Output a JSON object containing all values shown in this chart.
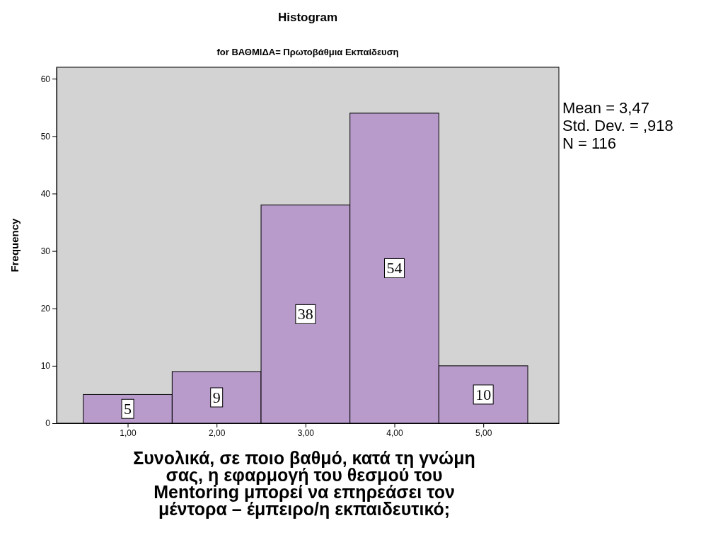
{
  "chart_data": {
    "type": "histogram",
    "title": "Histogram",
    "subtitle": "for ΒΑΘΜΙΔΑ= Πρωτοβάθμια Εκπαίδευση",
    "xlabel": "Συνολικά, σε ποιο βαθμό, κατά τη γνώμη\nσας, η εφαρμογή του θεσμού του\nMentoring μπορεί να επηρεάσει τον\nμέντορα – έμπειρο/η εκπαιδευτικό;",
    "ylabel": "Frequency",
    "bins": [
      0.5,
      1.5,
      2.5,
      3.5,
      4.5,
      5.5
    ],
    "values": [
      5,
      9,
      38,
      54,
      10
    ],
    "color": "#b89bcb",
    "data_labels": true,
    "xlim": [
      0.2,
      5.85
    ],
    "xticks": [
      {
        "value": 1,
        "label": "1,00"
      },
      {
        "value": 2,
        "label": "2,00"
      },
      {
        "value": 3,
        "label": "3,00"
      },
      {
        "value": 4,
        "label": "4,00"
      },
      {
        "value": 5,
        "label": "5,00"
      }
    ],
    "ylim": [
      0,
      62
    ],
    "yticks": [
      0,
      10,
      20,
      30,
      40,
      50,
      60
    ],
    "grid": false,
    "annotations": [
      "Mean = 3,47",
      "Std. Dev. = ,918",
      "N = 116"
    ]
  }
}
